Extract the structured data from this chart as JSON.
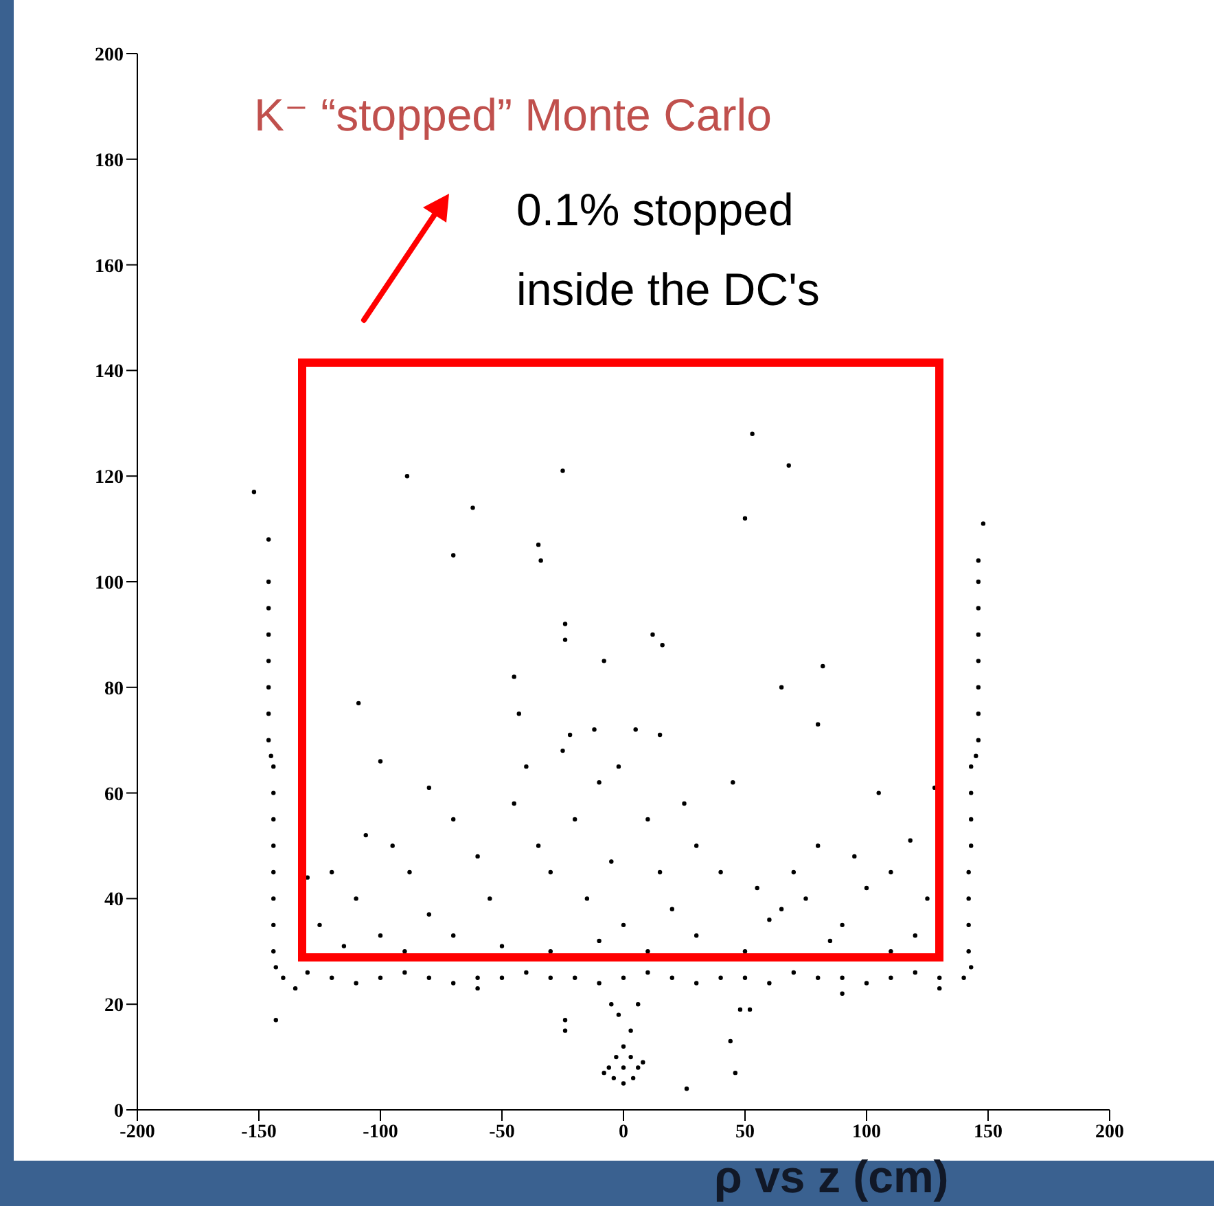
{
  "chart_data": {
    "type": "scatter",
    "title": "K⁻ “stopped” Monte Carlo",
    "xlabel": "ρ vs z (cm)",
    "annotations": [
      "0.1% stopped inside the DC's"
    ],
    "xlim": [
      -200,
      200
    ],
    "xticks": [
      -200,
      -150,
      -100,
      -50,
      0,
      50,
      100,
      150,
      200
    ],
    "ylim": [
      0,
      200
    ],
    "yticks": [
      0,
      20,
      40,
      60,
      80,
      100,
      120,
      140,
      160,
      180,
      200
    ],
    "marker": "circle",
    "series": [
      {
        "color": "#000000",
        "x": [
          -146,
          -146,
          -146,
          -146,
          -146,
          -146,
          -146,
          -146,
          -145,
          -144,
          -144,
          -144,
          -144,
          -144,
          -144,
          -144,
          -144,
          -143,
          -152,
          -143,
          148,
          146,
          146,
          146,
          146,
          146,
          146,
          146,
          146,
          145,
          143,
          143,
          143,
          143,
          142,
          142,
          142,
          142,
          143,
          -140,
          -130,
          -120,
          -110,
          -100,
          -90,
          -80,
          -70,
          -60,
          -50,
          -40,
          -30,
          -20,
          -10,
          0,
          10,
          20,
          30,
          40,
          50,
          60,
          70,
          80,
          90,
          100,
          110,
          120,
          130,
          140,
          -135,
          -60,
          90,
          130,
          0,
          -3,
          3,
          -6,
          6,
          0,
          -4,
          4,
          0,
          -8,
          8,
          -2,
          3,
          6,
          -5,
          -24,
          -24,
          44,
          46,
          26,
          48,
          52,
          -89,
          -25,
          -62,
          -70,
          -35,
          -34,
          -24,
          -24,
          -8,
          12,
          16,
          53,
          68,
          50,
          -45,
          -43,
          -109,
          65,
          82,
          80,
          -22,
          -12,
          5,
          15,
          -40,
          -25,
          -2,
          -80,
          -100,
          -106,
          -120,
          -130,
          -110,
          -95,
          -88,
          -80,
          -70,
          -60,
          -55,
          -45,
          -35,
          -30,
          -20,
          -15,
          -10,
          -5,
          0,
          10,
          15,
          20,
          25,
          30,
          40,
          45,
          55,
          60,
          65,
          70,
          75,
          80,
          90,
          95,
          100,
          105,
          110,
          118,
          125,
          120,
          -125,
          -115,
          -100,
          -90,
          -70,
          -50,
          -30,
          -10,
          10,
          30,
          50,
          85,
          110,
          128
        ],
        "values": [
          108,
          100,
          95,
          90,
          85,
          80,
          75,
          70,
          67,
          65,
          60,
          55,
          50,
          45,
          40,
          35,
          30,
          27,
          117,
          17,
          111,
          104,
          100,
          95,
          90,
          85,
          80,
          75,
          70,
          67,
          65,
          60,
          55,
          50,
          45,
          40,
          35,
          30,
          27,
          25,
          26,
          25,
          24,
          25,
          26,
          25,
          24,
          25,
          25,
          26,
          25,
          25,
          24,
          25,
          26,
          25,
          24,
          25,
          25,
          24,
          26,
          25,
          25,
          24,
          25,
          26,
          25,
          25,
          23,
          23,
          22,
          23,
          12,
          10,
          10,
          8,
          8,
          8,
          6,
          6,
          5,
          7,
          9,
          18,
          15,
          20,
          20,
          17,
          15,
          13,
          7,
          4,
          19,
          19,
          120,
          121,
          114,
          105,
          107,
          104,
          92,
          89,
          85,
          90,
          88,
          128,
          122,
          112,
          82,
          75,
          77,
          80,
          84,
          73,
          71,
          72,
          72,
          71,
          65,
          68,
          65,
          61,
          66,
          52,
          45,
          44,
          40,
          50,
          45,
          37,
          55,
          48,
          40,
          58,
          50,
          45,
          55,
          40,
          62,
          47,
          35,
          55,
          45,
          38,
          58,
          50,
          45,
          62,
          42,
          36,
          38,
          45,
          40,
          50,
          35,
          48,
          42,
          60,
          45,
          51,
          40,
          33,
          35,
          31,
          33,
          30,
          33,
          31,
          30,
          32,
          30,
          33,
          30,
          32,
          30,
          61
        ]
      }
    ]
  }
}
